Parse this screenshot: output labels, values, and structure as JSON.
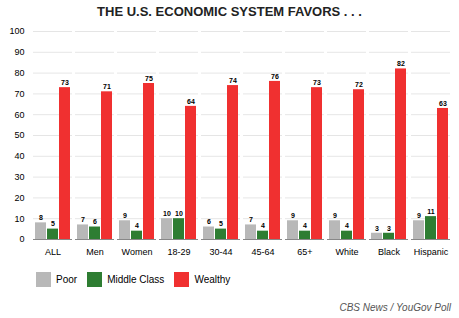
{
  "chart_data": {
    "type": "bar",
    "title": "THE U.S. ECONOMIC SYSTEM FAVORS . . .",
    "categories": [
      "ALL",
      "Men",
      "Women",
      "18-29",
      "30-44",
      "45-64",
      "65+",
      "White",
      "Black",
      "Hispanic"
    ],
    "series": [
      {
        "name": "Poor",
        "color": "#b8b8b8",
        "values": [
          8,
          7,
          9,
          10,
          6,
          7,
          9,
          9,
          3,
          9
        ]
      },
      {
        "name": "Middle Class",
        "color": "#2e7d32",
        "values": [
          5,
          6,
          4,
          10,
          5,
          4,
          4,
          4,
          3,
          11
        ]
      },
      {
        "name": "Wealthy",
        "color": "#f03030",
        "values": [
          73,
          71,
          75,
          64,
          74,
          76,
          73,
          72,
          82,
          63
        ]
      }
    ],
    "ylim": [
      0,
      100
    ],
    "yticks": [
      0,
      10,
      20,
      30,
      40,
      50,
      60,
      70,
      80,
      90,
      100
    ],
    "grid": true,
    "data_labels": true,
    "legend": "lower left",
    "annotations": [
      "CBS News / YouGov Poll"
    ]
  }
}
